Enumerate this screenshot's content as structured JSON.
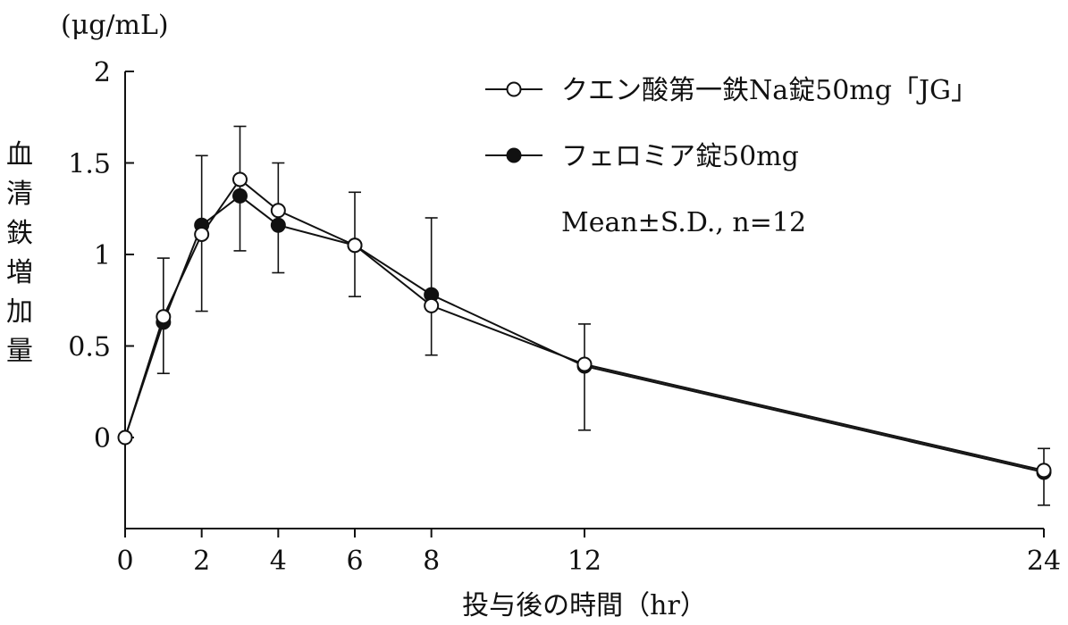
{
  "chart_data": {
    "type": "line",
    "title": "",
    "unit": "(μg/mL)",
    "ylabel": "血清鉄増加量",
    "xlabel": "投与後の時間（hr）",
    "xlim": [
      0,
      24
    ],
    "ylim": [
      -0.5,
      2
    ],
    "x_ticks": [
      0,
      2,
      4,
      6,
      8,
      12,
      24
    ],
    "y_ticks": [
      0,
      0.5,
      1,
      1.5,
      2
    ],
    "y_tick_labels": [
      "0",
      "0.5",
      "1",
      "1.5",
      "2"
    ],
    "x": [
      0,
      1,
      2,
      3,
      4,
      6,
      8,
      12,
      24
    ],
    "series": [
      {
        "name": "クエン酸第一鉄Na錠50mg「JG」",
        "marker": "open-circle",
        "values": [
          0,
          0.66,
          1.11,
          1.41,
          1.24,
          1.05,
          0.72,
          0.4,
          -0.18
        ]
      },
      {
        "name": "フェロミア錠50mg",
        "marker": "filled-circle",
        "values": [
          0,
          0.63,
          1.16,
          1.32,
          1.16,
          1.05,
          0.78,
          0.39,
          -0.19
        ],
        "error_lower": [
          0,
          0.35,
          0.69,
          1.02,
          0.9,
          0.77,
          0.45,
          0.04,
          -0.37
        ],
        "error_upper": [
          0,
          0.98,
          1.54,
          1.7,
          1.5,
          1.34,
          1.2,
          0.62,
          -0.06
        ]
      }
    ],
    "annotation": "Mean±S.D., n=12",
    "legend_position": "top-right"
  }
}
